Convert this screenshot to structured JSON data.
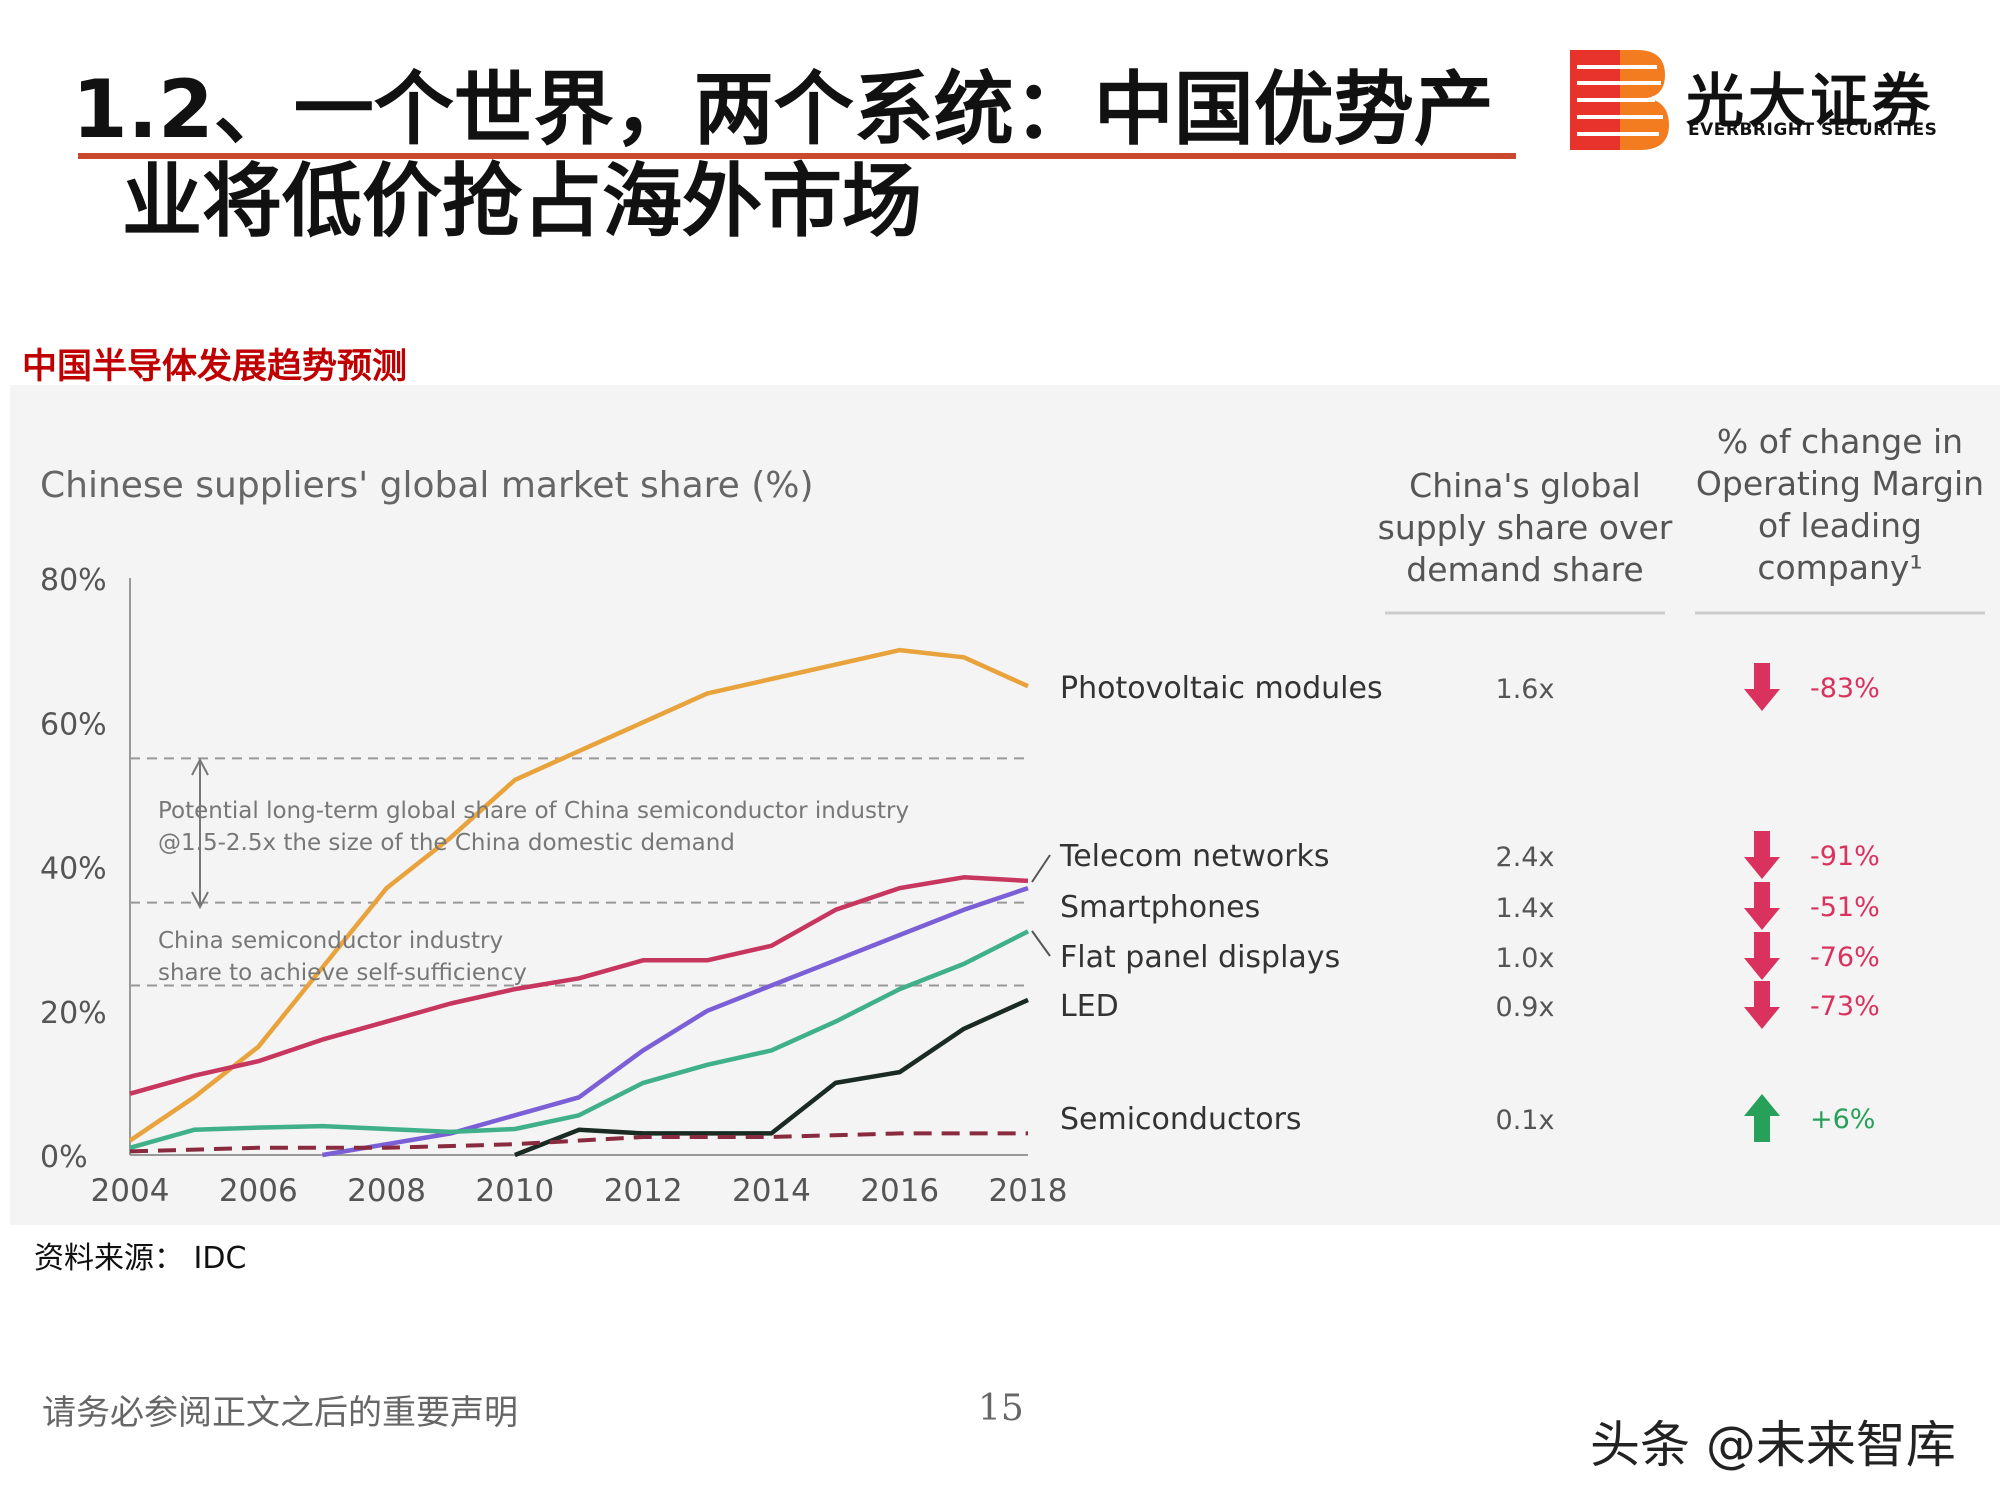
{
  "header": {
    "title_line1": "1.2、一个世界，两个系统：中国优势产",
    "title_line2": "业将低价抢占海外市场",
    "accent_color": "#c9482e"
  },
  "logo": {
    "name_cn": "光大证券",
    "name_en": "EVERBRIGHT SECURITIES",
    "icon": "everbright-b-logo"
  },
  "subtitle": "中国半导体发展趋势预测",
  "chart_data": {
    "type": "line",
    "title": "Chinese suppliers' global market share (%)",
    "xlim": [
      2004,
      2018
    ],
    "ylim": [
      0,
      80
    ],
    "x_ticks": [
      "2004",
      "2006",
      "2008",
      "2010",
      "2012",
      "2014",
      "2016",
      "2018"
    ],
    "y_ticks": [
      "0%",
      "20%",
      "40%",
      "60%",
      "80%"
    ],
    "series": [
      {
        "name": "Photovoltaic modules",
        "color": "#e8a33d",
        "dashed": false,
        "points": [
          [
            2004,
            2
          ],
          [
            2005,
            8
          ],
          [
            2006,
            15
          ],
          [
            2007,
            26
          ],
          [
            2008,
            37
          ],
          [
            2009,
            44
          ],
          [
            2010,
            52
          ],
          [
            2011,
            56
          ],
          [
            2012,
            60
          ],
          [
            2013,
            64
          ],
          [
            2014,
            66
          ],
          [
            2015,
            68
          ],
          [
            2016,
            70
          ],
          [
            2017,
            69
          ],
          [
            2018,
            65
          ]
        ]
      },
      {
        "name": "Telecom networks",
        "color": "#c7365f",
        "dashed": false,
        "points": [
          [
            2004,
            8.5
          ],
          [
            2005,
            11
          ],
          [
            2006,
            13
          ],
          [
            2007,
            16
          ],
          [
            2008,
            18.5
          ],
          [
            2009,
            21
          ],
          [
            2010,
            23
          ],
          [
            2011,
            24.5
          ],
          [
            2012,
            27
          ],
          [
            2013,
            27
          ],
          [
            2014,
            29
          ],
          [
            2015,
            34
          ],
          [
            2016,
            37
          ],
          [
            2017,
            38.5
          ],
          [
            2018,
            38
          ]
        ]
      },
      {
        "name": "Smartphones",
        "color": "#7b5fd6",
        "dashed": false,
        "points": [
          [
            2007,
            0
          ],
          [
            2008,
            1.5
          ],
          [
            2009,
            3
          ],
          [
            2010,
            5.5
          ],
          [
            2011,
            8
          ],
          [
            2012,
            14.5
          ],
          [
            2013,
            20
          ],
          [
            2014,
            23.5
          ],
          [
            2015,
            27
          ],
          [
            2016,
            30.5
          ],
          [
            2017,
            34
          ],
          [
            2018,
            37
          ]
        ]
      },
      {
        "name": "Flat panel displays",
        "color": "#3fb08a",
        "dashed": false,
        "points": [
          [
            2004,
            1
          ],
          [
            2005,
            3.5
          ],
          [
            2006,
            3.8
          ],
          [
            2007,
            4
          ],
          [
            2008,
            3.6
          ],
          [
            2009,
            3.2
          ],
          [
            2010,
            3.6
          ],
          [
            2011,
            5.5
          ],
          [
            2012,
            10
          ],
          [
            2013,
            12.5
          ],
          [
            2014,
            14.5
          ],
          [
            2015,
            18.5
          ],
          [
            2016,
            23
          ],
          [
            2017,
            26.5
          ],
          [
            2018,
            31
          ]
        ]
      },
      {
        "name": "LED",
        "color": "#1a2b24",
        "dashed": false,
        "points": [
          [
            2010,
            0
          ],
          [
            2011,
            3.5
          ],
          [
            2012,
            3
          ],
          [
            2013,
            3
          ],
          [
            2014,
            3
          ],
          [
            2015,
            10
          ],
          [
            2016,
            11.5
          ],
          [
            2017,
            17.5
          ],
          [
            2018,
            21.5
          ]
        ]
      },
      {
        "name": "Semiconductors",
        "color": "#8a2a3e",
        "dashed": true,
        "points": [
          [
            2004,
            0.5
          ],
          [
            2006,
            1
          ],
          [
            2008,
            1
          ],
          [
            2010,
            1.5
          ],
          [
            2012,
            2.5
          ],
          [
            2014,
            2.5
          ],
          [
            2016,
            3
          ],
          [
            2018,
            3
          ]
        ]
      }
    ],
    "reference_lines": [
      {
        "y": 55,
        "label": ""
      },
      {
        "y": 35,
        "label": ""
      },
      {
        "y": 23.5,
        "label": ""
      }
    ],
    "annotations": {
      "potential_line1": "Potential long-term global share of China semiconductor industry",
      "potential_line2": "@1.5-2.5x the size of the China domestic demand",
      "selfsuff_line1": "China semiconductor industry",
      "selfsuff_line2": "share to achieve self-sufficiency"
    },
    "table": {
      "col1_header": [
        "China's global",
        "supply share over",
        "demand share"
      ],
      "col2_header": [
        "% of change in",
        "Operating Margin",
        "of leading",
        "company¹"
      ],
      "rows": [
        {
          "label": "Photovoltaic modules",
          "ratio": "1.6x",
          "change": "-83%",
          "direction": "down"
        },
        {
          "label": "Telecom networks",
          "ratio": "2.4x",
          "change": "-91%",
          "direction": "down"
        },
        {
          "label": "Smartphones",
          "ratio": "1.4x",
          "change": "-51%",
          "direction": "down"
        },
        {
          "label": "Flat panel displays",
          "ratio": "1.0x",
          "change": "-76%",
          "direction": "down"
        },
        {
          "label": "LED",
          "ratio": "0.9x",
          "change": "-73%",
          "direction": "down"
        },
        {
          "label": "Semiconductors",
          "ratio": "0.1x",
          "change": "+6%",
          "direction": "up"
        }
      ],
      "down_color": "#d9325e",
      "up_color": "#27a05a"
    }
  },
  "footer": {
    "source": "资料来源： IDC",
    "disclaimer": "请务必参阅正文之后的重要声明",
    "page": "15",
    "watermark": "头条 @未来智库"
  }
}
